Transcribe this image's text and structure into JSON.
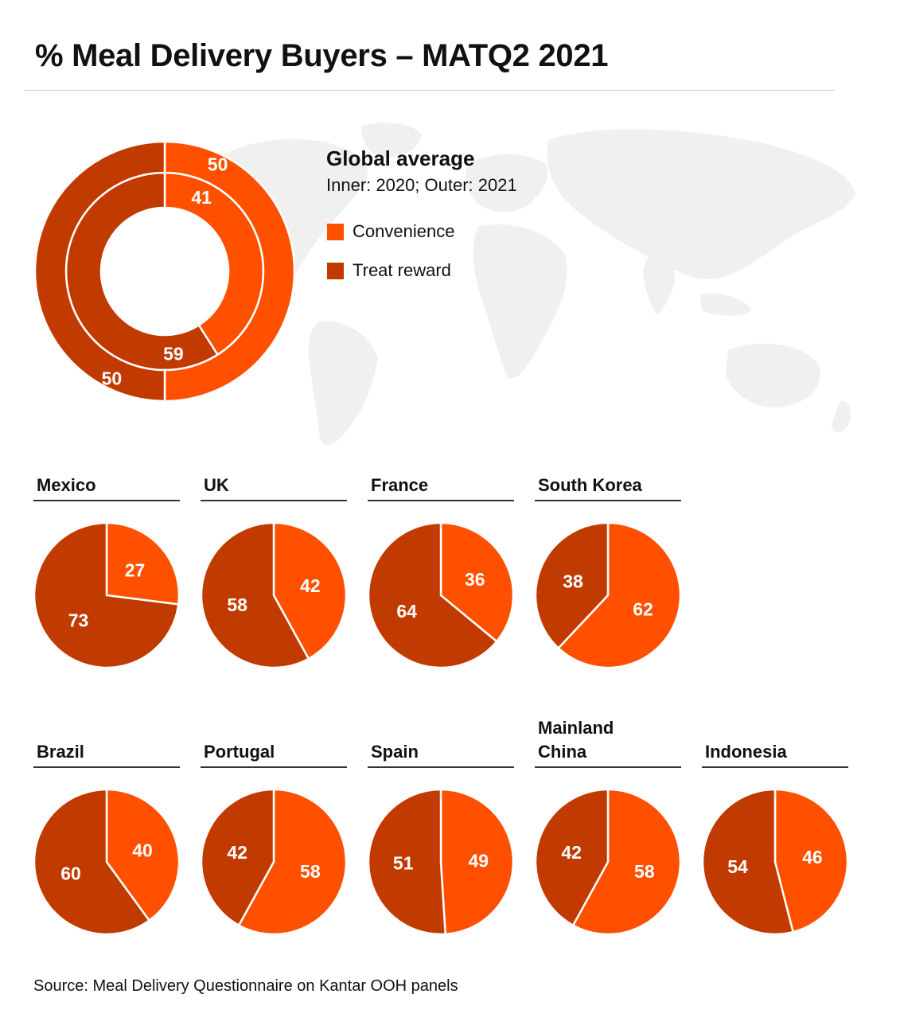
{
  "title": "% Meal Delivery Buyers – MATQ2 2021",
  "source": "Source: Meal Delivery Questionnaire on Kantar OOH panels",
  "colors": {
    "convenience": "#ff5000",
    "treat_reward": "#c13b00",
    "map": "#f0f0f0"
  },
  "legend": {
    "title": "Global average",
    "subtitle": "Inner: 2020; Outer: 2021",
    "items": [
      {
        "label": "Convenience"
      },
      {
        "label": "Treat reward"
      }
    ]
  },
  "chart_data": [
    {
      "type": "donut",
      "title": "Global average",
      "categories": [
        "Convenience",
        "Treat reward"
      ],
      "series": [
        {
          "name": "2020",
          "ring": "inner",
          "values": [
            41,
            59
          ]
        },
        {
          "name": "2021",
          "ring": "outer",
          "values": [
            50,
            50
          ]
        }
      ]
    },
    {
      "type": "pie",
      "categories": [
        "Convenience",
        "Treat reward"
      ],
      "countries": [
        {
          "name": "Mexico",
          "values": [
            27,
            73
          ]
        },
        {
          "name": "UK",
          "values": [
            42,
            58
          ]
        },
        {
          "name": "France",
          "values": [
            36,
            64
          ]
        },
        {
          "name": "South Korea",
          "values": [
            62,
            38
          ]
        },
        {
          "name": "Brazil",
          "values": [
            40,
            60
          ]
        },
        {
          "name": "Portugal",
          "values": [
            58,
            42
          ]
        },
        {
          "name": "Spain",
          "values": [
            49,
            51
          ]
        },
        {
          "name": "Mainland China",
          "values": [
            58,
            42
          ]
        },
        {
          "name": "Indonesia",
          "values": [
            46,
            54
          ]
        }
      ]
    }
  ]
}
